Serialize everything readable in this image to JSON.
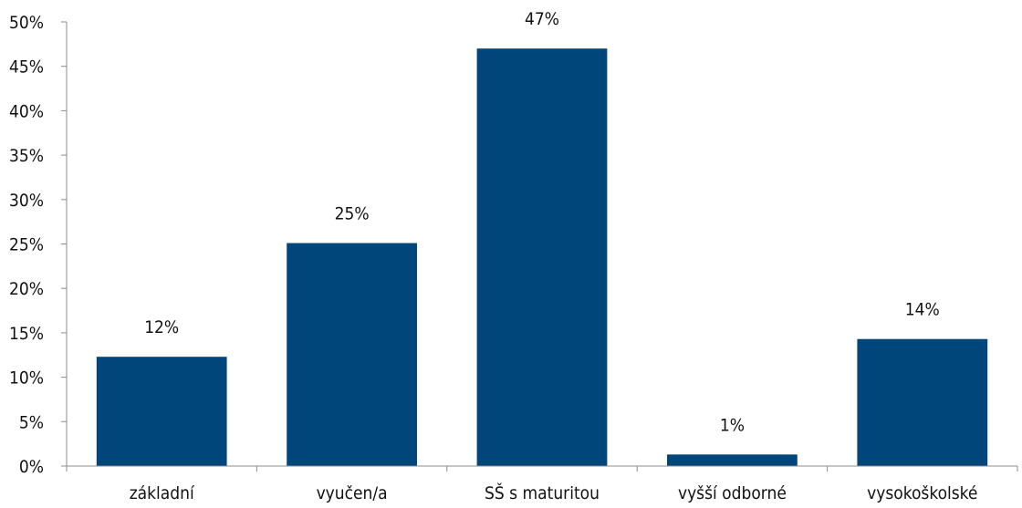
{
  "chart_data": {
    "type": "bar",
    "title": "",
    "xlabel": "",
    "ylabel": "",
    "categories": [
      "základní",
      "vyučen/a",
      "SŠ s maturitou",
      "vyšší odborné",
      "vysokoškolské"
    ],
    "values": [
      12.3,
      25.1,
      47.0,
      1.3,
      14.3
    ],
    "data_labels": [
      "12%",
      "25%",
      "47%",
      "1%",
      "14%"
    ],
    "ylim": [
      0,
      50
    ],
    "yticks": [
      0,
      5,
      10,
      15,
      20,
      25,
      30,
      35,
      40,
      45,
      50
    ],
    "ytick_labels": [
      "0%",
      "5%",
      "10%",
      "15%",
      "20%",
      "25%",
      "30%",
      "35%",
      "40%",
      "45%",
      "50%"
    ],
    "grid": false,
    "legend": "none",
    "bar_color": "#00467a"
  }
}
